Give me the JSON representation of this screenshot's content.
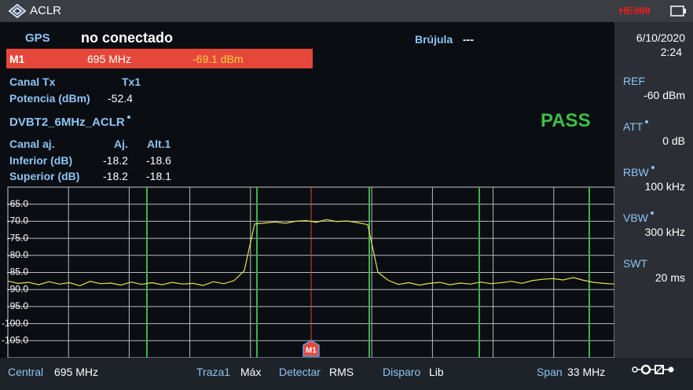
{
  "header": {
    "title": "ACLR",
    "indicator": "HE300"
  },
  "gps": {
    "label": "GPS",
    "value": "no conectado"
  },
  "compass": {
    "label": "Brújula",
    "value": "---"
  },
  "marker": {
    "name": "M1",
    "frequency": "695 MHz",
    "level": "-69.1 dBm"
  },
  "tx": {
    "channel_label": "Canal Tx",
    "channel": "Tx1",
    "power_label": "Potencia (dBm)",
    "power": "-52.4"
  },
  "standard": "DVBT2_6MHz_ACLR",
  "verdict": "PASS",
  "adjacent": {
    "header": [
      "Canal aj.",
      "Aj.",
      "Alt.1"
    ],
    "rows": [
      [
        "Inferior (dB)",
        "-18.2",
        "-18.6"
      ],
      [
        "Superior (dB)",
        "-18.2",
        "-18.1"
      ]
    ]
  },
  "side": {
    "date": "6/10/2020",
    "time": "2:24",
    "params": [
      {
        "label": "REF",
        "value": "-60 dBm"
      },
      {
        "label": "ATT",
        "value": "0 dB"
      },
      {
        "label": "RBW",
        "value": "100 kHz"
      },
      {
        "label": "VBW",
        "value": "300 kHz"
      },
      {
        "label": "SWT",
        "value": "20 ms"
      }
    ]
  },
  "footer": [
    {
      "label": "Central",
      "value": "695 MHz"
    },
    {
      "label": "Traza1",
      "value": "Máx"
    },
    {
      "label": "Detectar",
      "value": "RMS"
    },
    {
      "label": "Disparo",
      "value": "Lib"
    },
    {
      "label": "Span",
      "value": "33 MHz"
    }
  ],
  "chart_data": {
    "type": "line",
    "color": "#e8e04a",
    "marker_label": "M1",
    "ylim": [
      -110,
      -60
    ],
    "yticks": [
      {
        "value": -65,
        "label": "-65.0"
      },
      {
        "value": -70,
        "label": "-70.0"
      },
      {
        "value": -75,
        "label": "-75.0"
      },
      {
        "value": -80,
        "label": "-80.0"
      },
      {
        "value": -85,
        "label": "-85.0"
      },
      {
        "value": -90,
        "label": "-90.0"
      },
      {
        "value": -95,
        "label": "-95.0"
      },
      {
        "value": -100,
        "label": "-100.0"
      },
      {
        "value": -105,
        "label": "-105.0"
      }
    ],
    "grid": true,
    "values": [
      -87.5,
      -88.2,
      -87.9,
      -88.6,
      -87.7,
      -88.4,
      -88.0,
      -88.9,
      -87.6,
      -88.3,
      -88.1,
      -88.7,
      -87.8,
      -88.5,
      -88.0,
      -88.6,
      -87.9,
      -88.4,
      -88.2,
      -88.8,
      -87.7,
      -88.3,
      -87.4,
      -84.5,
      -70.8,
      -70.5,
      -70.2,
      -70.6,
      -70.0,
      -69.8,
      -70.3,
      -69.5,
      -70.1,
      -69.9,
      -70.4,
      -71.0,
      -85.0,
      -87.3,
      -88.5,
      -88.0,
      -88.7,
      -88.2,
      -87.9,
      -88.6,
      -88.1,
      -88.4,
      -87.8,
      -88.3,
      -88.0,
      -87.6,
      -88.2,
      -87.4,
      -87.0,
      -86.8,
      -87.2,
      -86.5,
      -87.3,
      -87.9,
      -88.2,
      -88.4
    ]
  }
}
